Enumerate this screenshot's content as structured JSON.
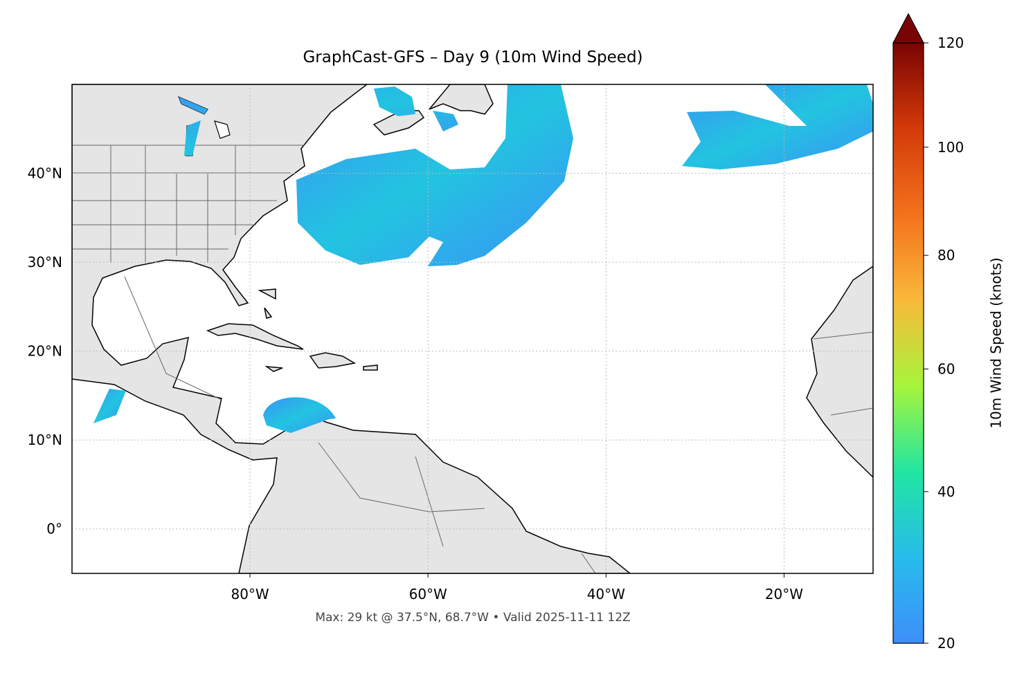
{
  "chart_data": {
    "type": "map",
    "title": "GraphCast-GFS – Day 9 (10m Wind Speed)",
    "subtitle": "Max: 29 kt @ 37.5°N, 68.7°W • Valid 2025-11-11 12Z",
    "xlim": [
      -100,
      -10
    ],
    "ylim": [
      -5,
      50
    ],
    "xticks": [
      {
        "value": -80,
        "label": "80°W"
      },
      {
        "value": -60,
        "label": "60°W"
      },
      {
        "value": -40,
        "label": "40°W"
      },
      {
        "value": -20,
        "label": "20°W"
      }
    ],
    "yticks": [
      {
        "value": 0,
        "label": "0°"
      },
      {
        "value": 10,
        "label": "10°N"
      },
      {
        "value": 20,
        "label": "20°N"
      },
      {
        "value": 30,
        "label": "30°N"
      },
      {
        "value": 40,
        "label": "40°N"
      }
    ],
    "grid": true,
    "colorbar": {
      "label": "10m Wind Speed (knots)",
      "lim": [
        20,
        120
      ],
      "ticks": [
        20,
        40,
        60,
        80,
        100,
        120
      ],
      "norm": "power",
      "gamma": 0.855,
      "extend": "max",
      "colors": [
        "#3e8ef9",
        "#27bceb",
        "#22e6a2",
        "#a6f53b",
        "#f9b93b",
        "#f3711c",
        "#d33a0a",
        "#7a0403"
      ]
    }
  }
}
